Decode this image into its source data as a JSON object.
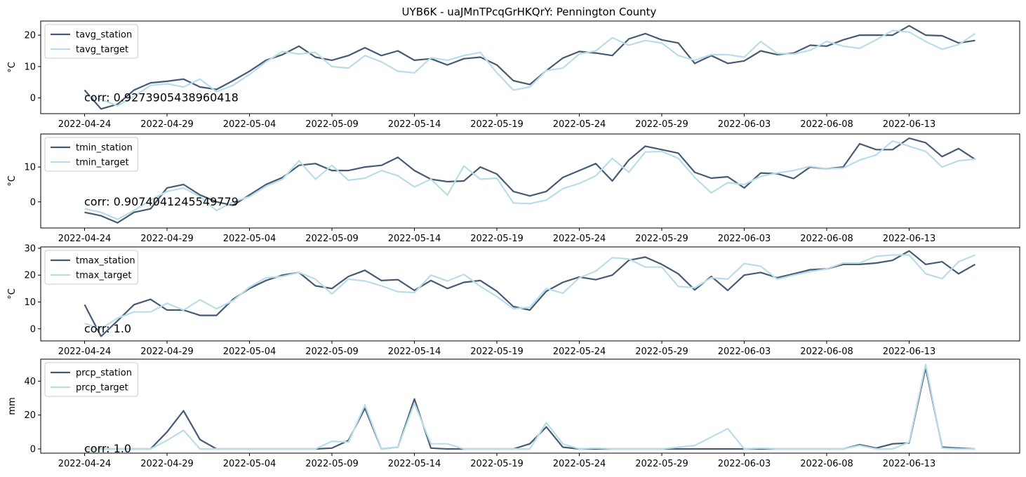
{
  "figure": {
    "title": "UYB6K - uaJMnTPcqGrHKQrY: Pennington County"
  },
  "colors": {
    "station": "#475a75",
    "target": "#b8dde9",
    "axes": "#000000",
    "legend_border": "#cccccc"
  },
  "chart_data": [
    {
      "type": "line",
      "title": "UYB6K - uaJMnTPcqGrHKQrY: Pennington County",
      "ylabel": "°C",
      "ylim": [
        -5,
        24.5
      ],
      "yticks": [
        0,
        10,
        20
      ],
      "grid": false,
      "legend": "top-left",
      "annotation": "corr: 0.9273905438960418",
      "series": [
        {
          "name": "tavg_station",
          "color": "#475a75",
          "values": [
            2.5,
            -3.5,
            -2,
            2.5,
            4.8,
            5.3,
            6,
            3.5,
            2.7,
            5.5,
            8.5,
            12,
            13.8,
            16.5,
            13,
            12,
            13.5,
            16,
            13.5,
            15,
            12,
            12.5,
            10.5,
            12.5,
            13,
            10.5,
            5.5,
            4.3,
            8.7,
            12.7,
            14.8,
            14.3,
            13.5,
            18.8,
            20.5,
            18.5,
            17.5,
            11,
            13.5,
            11,
            11.8,
            15,
            13.8,
            14.3,
            16.8,
            16.5,
            18.5,
            20,
            20,
            20,
            23,
            20,
            19.8,
            17.5,
            18.3
          ]
        },
        {
          "name": "tavg_target",
          "color": "#b8dde9",
          "values": [
            1,
            -0.5,
            -2.5,
            0.5,
            4,
            4.5,
            3.5,
            6,
            2,
            4,
            7.5,
            11.5,
            14.8,
            14,
            14.5,
            10,
            9.5,
            13.5,
            11.5,
            8.5,
            8,
            12.8,
            12,
            13.5,
            14.5,
            8,
            2.5,
            3.5,
            8.7,
            9.5,
            14,
            15,
            19.2,
            16.8,
            18.3,
            17.5,
            13.5,
            12,
            13.8,
            13.8,
            13,
            18,
            14.2,
            14,
            15.2,
            18,
            16.5,
            15.8,
            18.5,
            21.5,
            21,
            18,
            15.5,
            17,
            20.5
          ]
        }
      ]
    },
    {
      "type": "line",
      "ylabel": "°C",
      "ylim": [
        -7.5,
        19.5
      ],
      "yticks": [
        0,
        10
      ],
      "grid": false,
      "legend": "top-left",
      "annotation": "corr: 0.9074041245549779",
      "series": [
        {
          "name": "tmin_station",
          "color": "#475a75",
          "values": [
            -3,
            -4,
            -6,
            -3,
            -2,
            4,
            5,
            2,
            0,
            -1,
            2,
            5,
            7,
            10.5,
            11,
            9,
            9,
            10,
            10.5,
            12.8,
            9,
            6.5,
            5.8,
            6,
            10,
            8,
            3,
            1.7,
            3,
            7,
            9,
            11,
            6,
            12,
            16,
            15,
            14,
            8.5,
            6.8,
            7.2,
            4,
            8.3,
            8.1,
            6.7,
            10,
            9.5,
            10,
            16.7,
            15,
            15,
            18.3,
            17,
            13,
            15.3,
            12.2
          ]
        },
        {
          "name": "tmin_target",
          "color": "#b8dde9",
          "values": [
            -2,
            -3,
            -5,
            -2.5,
            0.5,
            3,
            4,
            1.5,
            -2.5,
            0,
            1.5,
            4.5,
            6.5,
            11.8,
            6.5,
            10.5,
            6.2,
            6.8,
            9,
            7.5,
            4.3,
            6.5,
            2,
            10.3,
            6.5,
            6.8,
            -0.3,
            -0.5,
            0.5,
            3.8,
            5.3,
            7.5,
            12.5,
            8.5,
            14.3,
            14.5,
            12.5,
            7,
            2.6,
            5.5,
            5,
            7.3,
            8.3,
            9,
            10.2,
            9.5,
            9.7,
            12,
            13.5,
            17.5,
            16,
            14.5,
            10,
            11.8,
            12.3
          ]
        }
      ]
    },
    {
      "type": "line",
      "ylabel": "°C",
      "ylim": [
        -4.5,
        30.5
      ],
      "yticks": [
        0,
        10,
        20,
        30
      ],
      "grid": false,
      "legend": "top-left",
      "annotation": "corr: 1.0",
      "series": [
        {
          "name": "tmax_station",
          "color": "#475a75",
          "values": [
            9,
            -2.8,
            3,
            9,
            11,
            7,
            7,
            5,
            5,
            11,
            15,
            18,
            20,
            21,
            16,
            15,
            19.5,
            21.8,
            18,
            18.3,
            14.3,
            18,
            15,
            17.3,
            18,
            14,
            8.3,
            7,
            14,
            17.3,
            19.3,
            18.3,
            20,
            25.5,
            26.7,
            24,
            20.5,
            14.5,
            19.5,
            14.3,
            20,
            21,
            19,
            20.5,
            22,
            22.3,
            24,
            24,
            24.5,
            25.5,
            29,
            24,
            25,
            20.5,
            24
          ]
        },
        {
          "name": "tmax_target",
          "color": "#b8dde9",
          "values": [
            2,
            0,
            4,
            6.3,
            6.3,
            9.5,
            7,
            10.8,
            7.5,
            10.5,
            15.5,
            19,
            19.5,
            21,
            18.5,
            13,
            18.5,
            17.8,
            16,
            13.8,
            13.5,
            20,
            17.8,
            20.3,
            15.8,
            12,
            7.5,
            8,
            15,
            13.3,
            19,
            21.5,
            26.5,
            26,
            23,
            23,
            15.8,
            15.3,
            19,
            18.5,
            24.3,
            23.3,
            18.5,
            20,
            21.3,
            22.3,
            24.5,
            24.5,
            27,
            27.5,
            27.5,
            20.5,
            18.7,
            25,
            27.5
          ]
        }
      ]
    },
    {
      "type": "line",
      "ylabel": "mm",
      "ylim": [
        -2.5,
        53
      ],
      "yticks": [
        0,
        20,
        40
      ],
      "grid": false,
      "legend": "top-left",
      "annotation": "corr: 1.0",
      "series": [
        {
          "name": "prcp_station",
          "color": "#475a75",
          "values": [
            0,
            0,
            0,
            0,
            0,
            10,
            22.5,
            5.5,
            0,
            0,
            0,
            0,
            0,
            0,
            0,
            0.5,
            5,
            24,
            0,
            1,
            29.5,
            0.5,
            0,
            0,
            0,
            0,
            0,
            3,
            13,
            1,
            0,
            0,
            0,
            0,
            0,
            0,
            0,
            0,
            0,
            0,
            0,
            0,
            0,
            0,
            0,
            0,
            0,
            2.5,
            0.5,
            3,
            3.5,
            48,
            1,
            0.5,
            0
          ]
        },
        {
          "name": "prcp_target",
          "color": "#b8dde9",
          "values": [
            0,
            0,
            0,
            0,
            0,
            5,
            11,
            0,
            0,
            0,
            0,
            0,
            0,
            0,
            0,
            4.5,
            4,
            26,
            0,
            1,
            27,
            3,
            3,
            0,
            0,
            0,
            0,
            0,
            15.5,
            3,
            0,
            0.5,
            0,
            0,
            0,
            0,
            1,
            2,
            7,
            12,
            0,
            0.5,
            0,
            0,
            0,
            0,
            0,
            2,
            0,
            0,
            4,
            50,
            0.5,
            0,
            0
          ]
        }
      ]
    }
  ],
  "x_axis": {
    "start_date": "2022-04-24",
    "tick_labels": [
      "2022-04-24",
      "2022-04-29",
      "2022-05-04",
      "2022-05-09",
      "2022-05-14",
      "2022-05-19",
      "2022-05-24",
      "2022-05-29",
      "2022-06-03",
      "2022-06-08",
      "2022-06-13"
    ]
  }
}
